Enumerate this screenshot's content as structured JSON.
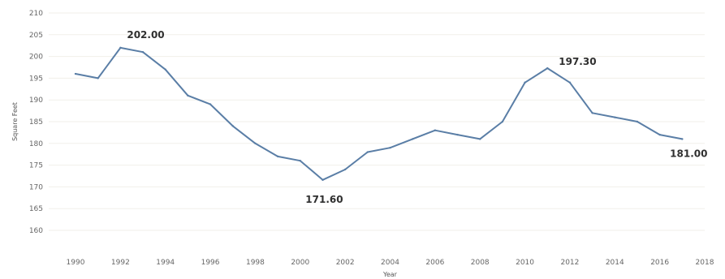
{
  "chart_data": {
    "type": "line",
    "title": "",
    "xlabel": "Year",
    "ylabel": "Square Feet",
    "x": [
      1990,
      1991,
      1992,
      1993,
      1994,
      1995,
      1996,
      1997,
      1998,
      1999,
      2000,
      2001,
      2002,
      2003,
      2004,
      2005,
      2006,
      2007,
      2008,
      2009,
      2010,
      2011,
      2012,
      2013,
      2014,
      2015,
      2016,
      2017
    ],
    "series": [
      {
        "values": [
          196.0,
          195.0,
          202.0,
          201.0,
          197.0,
          191.0,
          189.0,
          184.0,
          180.0,
          177.0,
          176.0,
          171.6,
          174.0,
          178.0,
          179.0,
          181.0,
          183.0,
          182.0,
          181.0,
          185.0,
          194.0,
          197.3,
          194.0,
          187.0,
          186.0,
          185.0,
          182.0,
          181.0
        ]
      }
    ],
    "xlim": [
      1990,
      2018
    ],
    "ylim": [
      160,
      210
    ],
    "xticks": [
      "1990",
      "1992",
      "1994",
      "1996",
      "1998",
      "2000",
      "2002",
      "2004",
      "2006",
      "2008",
      "2010",
      "2012",
      "2014",
      "2016",
      "2018"
    ],
    "yticks": [
      "160",
      "165",
      "170",
      "175",
      "180",
      "185",
      "190",
      "195",
      "200",
      "205",
      "210"
    ],
    "grid": true,
    "line_color": "#5a7ea6",
    "annotations": [
      {
        "x": 1992,
        "y": 202.0,
        "text": "202.00"
      },
      {
        "x": 2001,
        "y": 171.6,
        "text": "171.60"
      },
      {
        "x": 2011,
        "y": 197.3,
        "text": "197.30"
      },
      {
        "x": 2017,
        "y": 181.0,
        "text": "181.00"
      }
    ]
  }
}
